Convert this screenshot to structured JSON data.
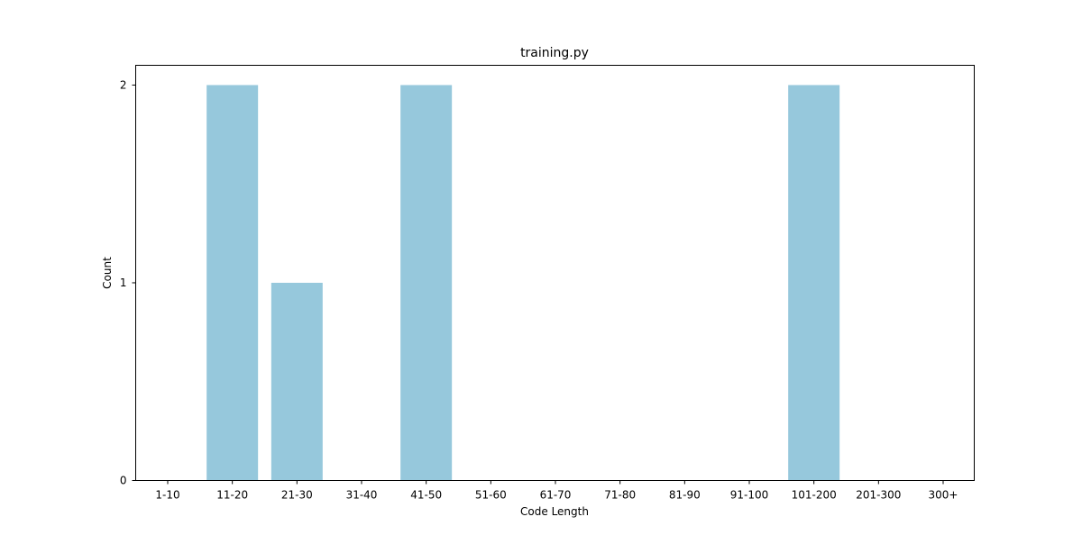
{
  "chart_data": {
    "type": "bar",
    "title": "training.py",
    "xlabel": "Code Length",
    "ylabel": "Count",
    "categories": [
      "1-10",
      "11-20",
      "21-30",
      "31-40",
      "41-50",
      "51-60",
      "61-70",
      "71-80",
      "81-90",
      "91-100",
      "101-200",
      "201-300",
      "300+"
    ],
    "values": [
      0,
      2,
      1,
      0,
      2,
      0,
      0,
      0,
      0,
      0,
      2,
      0,
      0
    ],
    "ylim": [
      0,
      2.1
    ],
    "yticks": [
      0,
      1,
      2
    ],
    "ytick_labels": [
      "0",
      "1",
      "2"
    ],
    "grid": false,
    "bar_color": "#96c8dc"
  }
}
